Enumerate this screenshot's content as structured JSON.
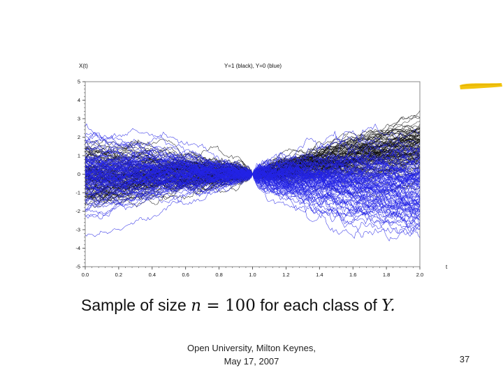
{
  "chart_data": {
    "type": "line",
    "title": "Y=1 (black), Y=0 (blue)",
    "ylabel": "X(t)",
    "xlabel": "t",
    "xlim": [
      0.0,
      2.0
    ],
    "ylim": [
      -5,
      5
    ],
    "x_ticks": [
      "0.0",
      "0.2",
      "0.4",
      "0.6",
      "0.8",
      "1.0",
      "1.2",
      "1.4",
      "1.6",
      "1.8",
      "2.0"
    ],
    "y_ticks": [
      "5",
      "4",
      "3",
      "2",
      "1",
      "0",
      "-1",
      "-2",
      "-3",
      "-4",
      "-5"
    ],
    "grid": false,
    "series": [
      {
        "class": "Y=1",
        "color": "#111111",
        "count": 100,
        "meeting_point": [
          1.0,
          0.0
        ],
        "slope_after_1": 1.5,
        "spread_at_0": 0.9,
        "spread_at_2": 0.75
      },
      {
        "class": "Y=0",
        "color": "#2323e6",
        "count": 100,
        "meeting_point": [
          1.0,
          0.0
        ],
        "slope_after_1": -0.8,
        "spread_at_0": 1.0,
        "spread_at_2": 1.3
      }
    ]
  },
  "caption": {
    "prefix": "Sample of size ",
    "math_var": "n",
    "equals": " = ",
    "number": "100",
    "middle": " for each class of ",
    "class_var": "Y",
    "suffix": "."
  },
  "footer": {
    "line1": "Open University, Milton Keynes,",
    "line2": "May 17, 2007"
  },
  "slide_number": "37"
}
